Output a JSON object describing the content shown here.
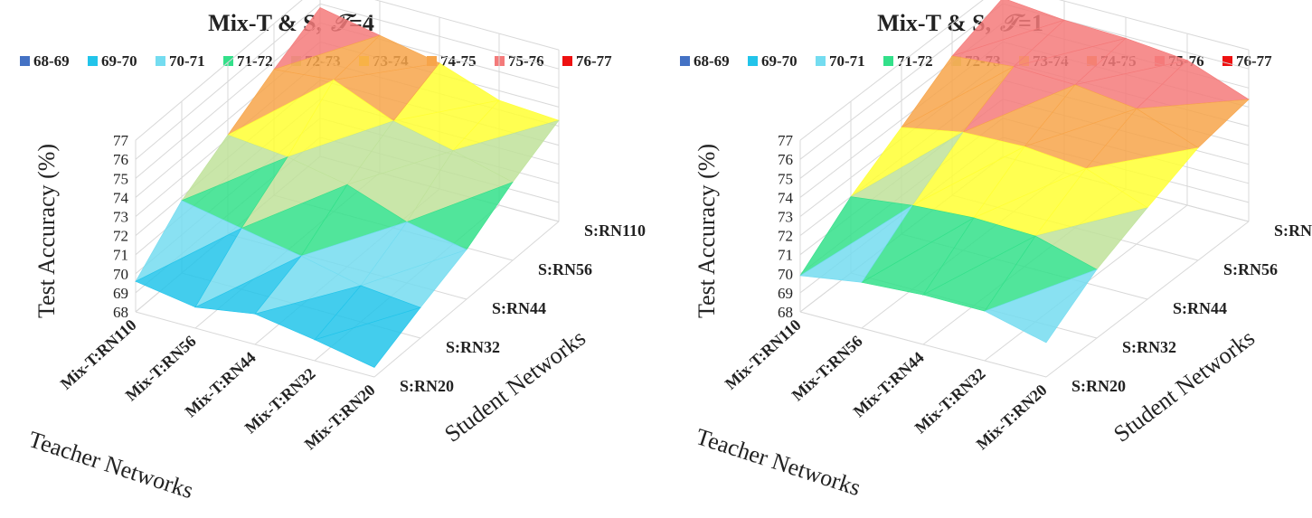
{
  "legend": {
    "bands": [
      {
        "label": "68-69",
        "color": "#4472c4"
      },
      {
        "label": "69-70",
        "color": "#22c4ea"
      },
      {
        "label": "70-71",
        "color": "#74dcf0"
      },
      {
        "label": "71-72",
        "color": "#33e08a"
      },
      {
        "label": "72-73",
        "color": "#bfe29a"
      },
      {
        "label": "73-74",
        "color": "#ffff33"
      },
      {
        "label": "74-75",
        "color": "#f7a54a"
      },
      {
        "label": "75-76",
        "color": "#f47a7a"
      },
      {
        "label": "76-77",
        "color": "#ee1111"
      }
    ]
  },
  "chart_data": [
    {
      "type": "surface",
      "title_prefix": "Mix-T & S,",
      "title_tau": "𝒯",
      "title_suffix": "=4",
      "teacher_categories": [
        "Mix-T:RN110",
        "Mix-T:RN56",
        "Mix-T:RN44",
        "Mix-T:RN32",
        "Mix-T:RN20"
      ],
      "student_categories": [
        "S:RN20",
        "S:RN32",
        "S:RN44",
        "S:RN56",
        "S:RN110"
      ],
      "zlabel": "Test Accuracy (%)",
      "xlabel": "Teacher Networks",
      "ylabel": "Student Networks",
      "zticks": [
        "68",
        "69",
        "70",
        "71",
        "72",
        "73",
        "74",
        "75",
        "76",
        "77"
      ],
      "zlim": [
        68,
        77
      ],
      "values": [
        [
          69.6,
          71.8,
          73.2,
          74.6,
          75.8
        ],
        [
          69.1,
          71.2,
          72.9,
          74.9,
          75.2
        ],
        [
          69.6,
          70.6,
          72.3,
          73.6,
          74.6
        ],
        [
          69.1,
          69.9,
          71.2,
          72.9,
          73.5
        ],
        [
          68.5,
          69.6,
          70.6,
          72.1,
          73.3
        ]
      ]
    },
    {
      "type": "surface",
      "title_prefix": "Mix-T & S,",
      "title_tau": "𝒯",
      "title_suffix": "=1",
      "teacher_categories": [
        "Mix-T:RN110",
        "Mix-T:RN56",
        "Mix-T:RN44",
        "Mix-T:RN32",
        "Mix-T:RN20"
      ],
      "student_categories": [
        "S:RN20",
        "S:RN32",
        "S:RN44",
        "S:RN56",
        "S:RN110"
      ],
      "zlabel": "Test Accuracy (%)",
      "xlabel": "Teacher Networks",
      "ylabel": "Student Networks",
      "zticks": [
        "68",
        "69",
        "70",
        "71",
        "72",
        "73",
        "74",
        "75",
        "76",
        "77"
      ],
      "zlim": [
        68,
        77
      ],
      "values": [
        [
          69.9,
          72.0,
          73.6,
          75.3,
          76.3
        ],
        [
          70.4,
          72.4,
          74.2,
          75.6,
          76.0
        ],
        [
          70.6,
          72.6,
          74.3,
          75.5,
          75.9
        ],
        [
          70.6,
          72.5,
          74.0,
          75.1,
          75.6
        ],
        [
          69.8,
          71.6,
          72.8,
          73.9,
          74.4
        ]
      ]
    }
  ]
}
